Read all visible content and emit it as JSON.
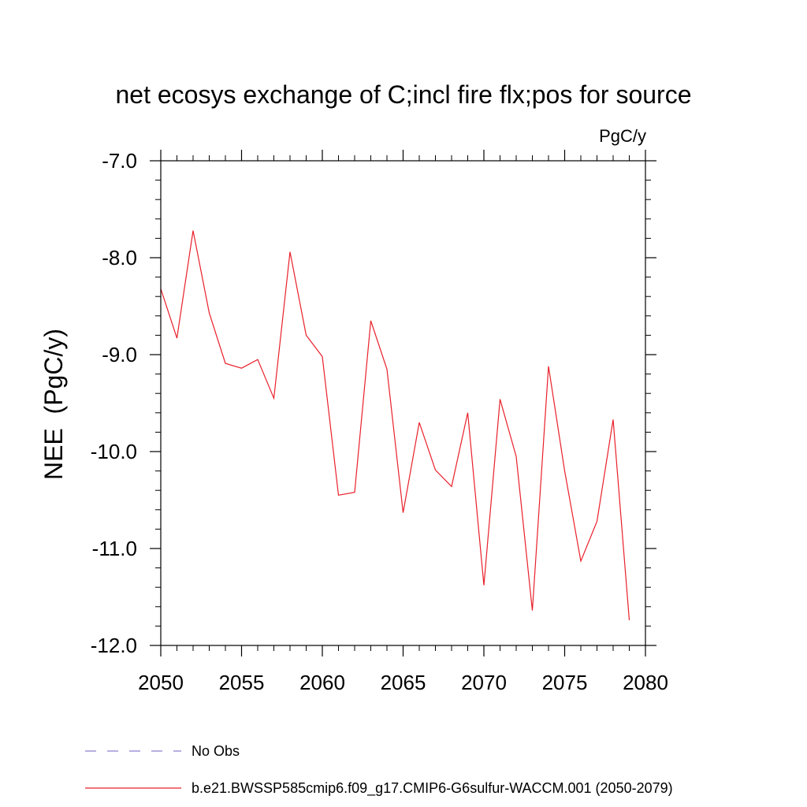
{
  "chart_data": {
    "type": "line",
    "title": "net ecosys exchange of C;incl fire flx;pos for source",
    "units": "PgC/y",
    "xlabel": "",
    "ylabel": "NEE  (PgC/y)",
    "xlim": [
      2050,
      2080
    ],
    "ylim": [
      -12.0,
      -7.0
    ],
    "x_ticks": [
      2050,
      2055,
      2060,
      2065,
      2070,
      2075,
      2080
    ],
    "x_tick_labels": [
      "2050",
      "2055",
      "2060",
      "2065",
      "2070",
      "2075",
      "2080"
    ],
    "y_ticks": [
      -7.0,
      -8.0,
      -9.0,
      -10.0,
      -11.0,
      -12.0
    ],
    "y_tick_labels": [
      "-7.0",
      "-8.0",
      "-9.0",
      "-10.0",
      "-11.0",
      "-12.0"
    ],
    "grid": false,
    "legend_position": "bottom-left",
    "series": [
      {
        "name": "No Obs",
        "color": "#8a7fd1",
        "dash": "dashed",
        "x": [],
        "values": []
      },
      {
        "name": "b.e21.BWSSP585cmip6.f09_g17.CMIP6-G6sulfur-WACCM.001 (2050-2079)",
        "color": "#e8202a",
        "dash": "solid",
        "x": [
          2050,
          2051,
          2052,
          2053,
          2054,
          2055,
          2056,
          2057,
          2058,
          2059,
          2060,
          2061,
          2062,
          2063,
          2064,
          2065,
          2066,
          2067,
          2068,
          2069,
          2070,
          2071,
          2072,
          2073,
          2074,
          2075,
          2076,
          2077,
          2078,
          2079
        ],
        "values": [
          -8.32,
          -8.83,
          -7.72,
          -8.57,
          -9.09,
          -9.14,
          -9.05,
          -9.45,
          -7.94,
          -8.8,
          -9.02,
          -10.45,
          -10.42,
          -8.65,
          -9.15,
          -10.63,
          -9.7,
          -10.19,
          -10.36,
          -9.6,
          -11.38,
          -9.46,
          -10.05,
          -11.64,
          -9.12,
          -10.2,
          -11.13,
          -10.72,
          -9.67,
          -11.74
        ]
      }
    ]
  }
}
